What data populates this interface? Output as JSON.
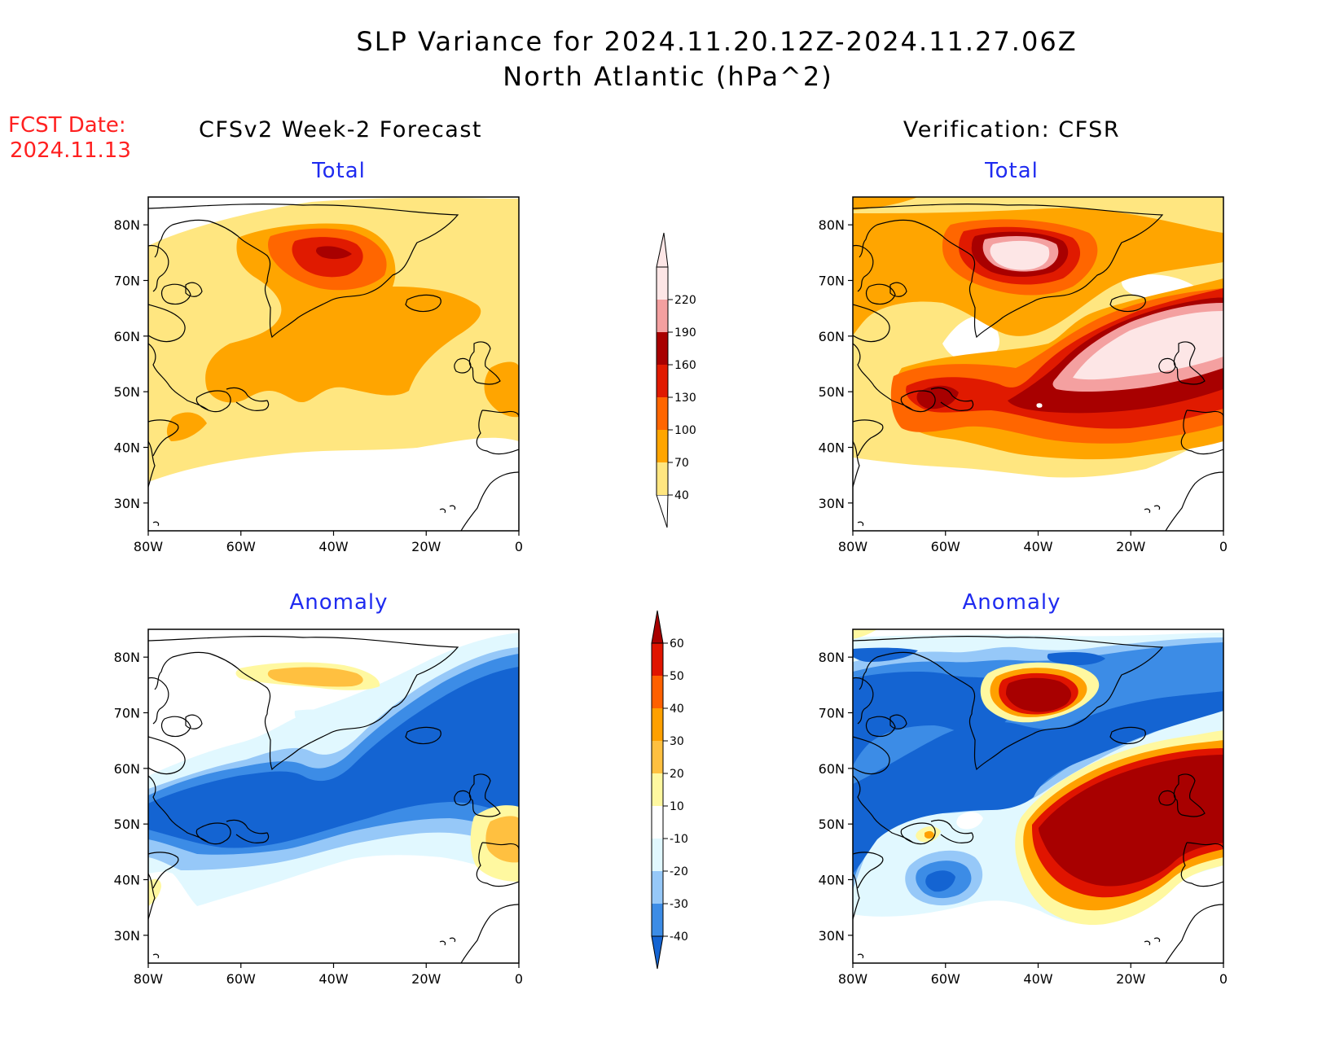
{
  "title": {
    "line1": "SLP Variance for 2024.11.20.12Z-2024.11.27.06Z",
    "line2": "North Atlantic (hPa^2)"
  },
  "fcst_date": {
    "label": "FCST Date:",
    "value": "2024.11.13"
  },
  "columns": {
    "left": "CFSv2 Week-2 Forecast",
    "right": "Verification: CFSR"
  },
  "panels": {
    "fcst_total": "Total",
    "verif_total": "Total",
    "fcst_anom": "Anomaly",
    "verif_anom": "Anomaly"
  },
  "axes": {
    "lon_ticks": [
      "80W",
      "60W",
      "40W",
      "20W",
      "0"
    ],
    "lat_ticks": [
      "80N",
      "70N",
      "60N",
      "50N",
      "40N",
      "30N"
    ]
  },
  "colorbars": {
    "total": {
      "levels": [
        "40",
        "70",
        "100",
        "130",
        "160",
        "190",
        "220"
      ],
      "colors": [
        "#ffe680",
        "#ffa500",
        "#ff6600",
        "#e01a00",
        "#a80000",
        "#f4a0a0",
        "#fde6e6"
      ]
    },
    "anomaly": {
      "levels": [
        "-40",
        "-30",
        "-20",
        "-10",
        "10",
        "20",
        "30",
        "40",
        "50",
        "60"
      ],
      "colors": [
        "#1464d2",
        "#3c8ce6",
        "#96c8f8",
        "#e1f8ff",
        "#ffffff",
        "#fff8a0",
        "#ffc040",
        "#ffa000",
        "#ff6000",
        "#e01400",
        "#a80000"
      ]
    }
  },
  "palette": {
    "t40": "#ffe680",
    "t70": "#ffa500",
    "t100": "#ff6600",
    "t130": "#e01a00",
    "t160": "#a80000",
    "t190": "#f4a0a0",
    "t220": "#fde6e6",
    "a_m40": "#1464d2",
    "a_m30": "#3c8ce6",
    "a_m20": "#96c8f8",
    "a_m10": "#e1f8ff",
    "a_10": "#fff8a0",
    "a_20": "#ffc040",
    "a_30": "#ffa000",
    "a_40": "#ff6000",
    "a_50": "#e01400",
    "a_60": "#a80000"
  }
}
